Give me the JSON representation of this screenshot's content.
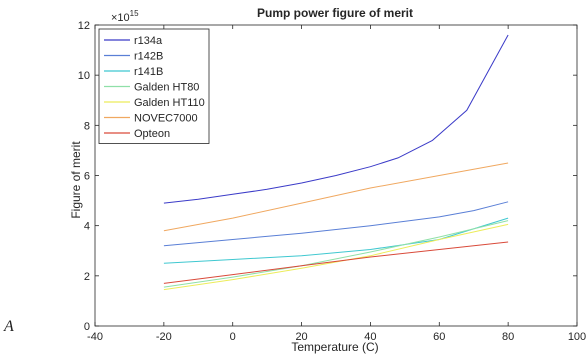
{
  "stray_text": "A",
  "chart_data": {
    "type": "line",
    "title": "Pump power figure of merit",
    "xlabel": "Temperature (C)",
    "ylabel": "Figure of merit",
    "y_exponent_label": "×10",
    "y_exponent_power": "15",
    "xlim": [
      -40,
      100
    ],
    "ylim": [
      0,
      12
    ],
    "xticks": [
      -40,
      -20,
      0,
      20,
      40,
      60,
      80,
      100
    ],
    "yticks": [
      0,
      2,
      4,
      6,
      8,
      10,
      12
    ],
    "grid": false,
    "legend_position": "top-left",
    "series": [
      {
        "name": "r134a",
        "color": "#3b3bc8",
        "x": [
          -20,
          -10,
          0,
          10,
          20,
          30,
          40,
          48,
          58,
          68,
          80
        ],
        "y": [
          4.9,
          5.05,
          5.25,
          5.45,
          5.7,
          6.0,
          6.35,
          6.7,
          7.4,
          8.6,
          11.6
        ]
      },
      {
        "name": "r142B",
        "color": "#5a7fd6",
        "x": [
          -20,
          0,
          20,
          40,
          60,
          70,
          80
        ],
        "y": [
          3.2,
          3.45,
          3.7,
          4.0,
          4.35,
          4.6,
          4.95
        ]
      },
      {
        "name": "r141B",
        "color": "#3fc8d0",
        "x": [
          -20,
          0,
          20,
          40,
          60,
          80
        ],
        "y": [
          2.5,
          2.65,
          2.8,
          3.05,
          3.45,
          4.3
        ]
      },
      {
        "name": "Galden HT80",
        "color": "#8fe0a8",
        "x": [
          -20,
          0,
          20,
          40,
          60,
          80
        ],
        "y": [
          1.55,
          1.95,
          2.4,
          2.95,
          3.55,
          4.2
        ]
      },
      {
        "name": "Galden HT110",
        "color": "#ecec5a",
        "x": [
          -20,
          0,
          20,
          40,
          60,
          80
        ],
        "y": [
          1.45,
          1.85,
          2.3,
          2.8,
          3.45,
          4.05
        ]
      },
      {
        "name": "NOVEC7000",
        "color": "#f0a860",
        "x": [
          -20,
          0,
          20,
          40,
          60,
          80
        ],
        "y": [
          3.8,
          4.3,
          4.9,
          5.5,
          6.0,
          6.5
        ]
      },
      {
        "name": "Opteon",
        "color": "#d94a3a",
        "x": [
          -20,
          0,
          20,
          40,
          60,
          80
        ],
        "y": [
          1.7,
          2.05,
          2.4,
          2.75,
          3.05,
          3.35
        ]
      }
    ]
  }
}
